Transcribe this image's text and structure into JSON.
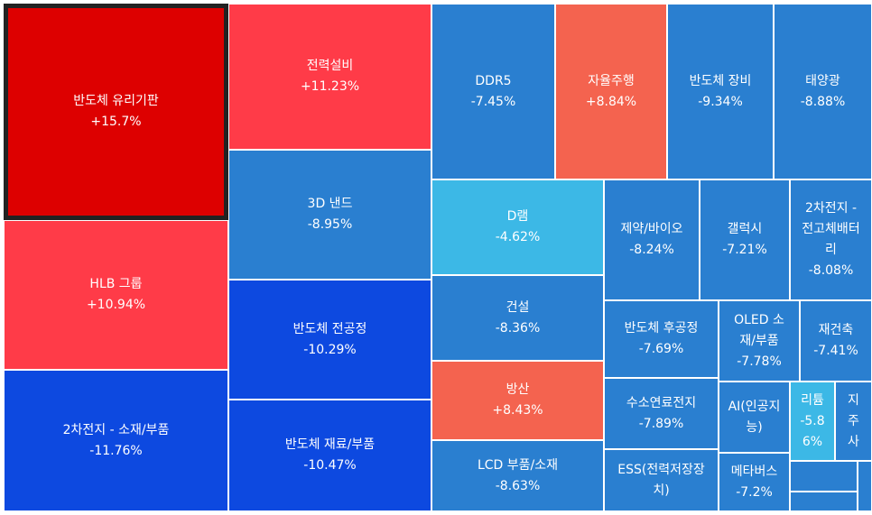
{
  "chart_data": {
    "type": "treemap",
    "title": "",
    "colors": {
      "strong_up": "#dd0000",
      "up": "#ff3b48",
      "mild_up": "#f4634f",
      "weak_down": "#3cb8e6",
      "down": "#2a7fd0",
      "strong_down": "#0d49e0",
      "empty": "#2a7fd0"
    },
    "items": [
      {
        "label": "반도체 유리기판",
        "change": "+15.7%",
        "value": 15.7,
        "selected": true
      },
      {
        "label": "HLB 그룹",
        "change": "+10.94%",
        "value": 10.94
      },
      {
        "label": "2차전지 - 소재/부품",
        "change": "-11.76%",
        "value": -11.76
      },
      {
        "label": "전력설비",
        "change": "+11.23%",
        "value": 11.23
      },
      {
        "label": "3D 낸드",
        "change": "-8.95%",
        "value": -8.95
      },
      {
        "label": "반도체 전공정",
        "change": "-10.29%",
        "value": -10.29
      },
      {
        "label": "반도체 재료/부품",
        "change": "-10.47%",
        "value": -10.47
      },
      {
        "label": "DDR5",
        "change": "-7.45%",
        "value": -7.45
      },
      {
        "label": "자율주행",
        "change": "+8.84%",
        "value": 8.84
      },
      {
        "label": "반도체 장비",
        "change": "-9.34%",
        "value": -9.34
      },
      {
        "label": "태양광",
        "change": "-8.88%",
        "value": -8.88
      },
      {
        "label": "D램",
        "change": "-4.62%",
        "value": -4.62
      },
      {
        "label": "제약/바이오",
        "change": "-8.24%",
        "value": -8.24
      },
      {
        "label": "갤럭시",
        "change": "-7.21%",
        "value": -7.21
      },
      {
        "label": "2차전지 -\n전고체배터\n리",
        "change": "-8.08%",
        "value": -8.08
      },
      {
        "label": "건설",
        "change": "-8.36%",
        "value": -8.36
      },
      {
        "label": "반도체 후공정",
        "change": "-7.69%",
        "value": -7.69
      },
      {
        "label": "OLED 소\n재/부품",
        "change": "-7.78%",
        "value": -7.78
      },
      {
        "label": "재건축",
        "change": "-7.41%",
        "value": -7.41
      },
      {
        "label": "방산",
        "change": "+8.43%",
        "value": 8.43
      },
      {
        "label": "수소연료전지",
        "change": "-7.89%",
        "value": -7.89
      },
      {
        "label": "AI(인공지\n능)",
        "change": "",
        "value": null
      },
      {
        "label": "리튬",
        "change": "-5.8\n6%",
        "value": -5.86
      },
      {
        "label": "지\n주\n사",
        "change": "",
        "value": null
      },
      {
        "label": "LCD 부품/소재",
        "change": "-8.63%",
        "value": -8.63
      },
      {
        "label": "ESS(전력저장장\n치)",
        "change": "",
        "value": null
      },
      {
        "label": "메타버스",
        "change": "-7.2%",
        "value": -7.2
      },
      {
        "label": "",
        "change": "",
        "value": null
      },
      {
        "label": "",
        "change": "",
        "value": null
      },
      {
        "label": "",
        "change": "",
        "value": null
      }
    ]
  }
}
